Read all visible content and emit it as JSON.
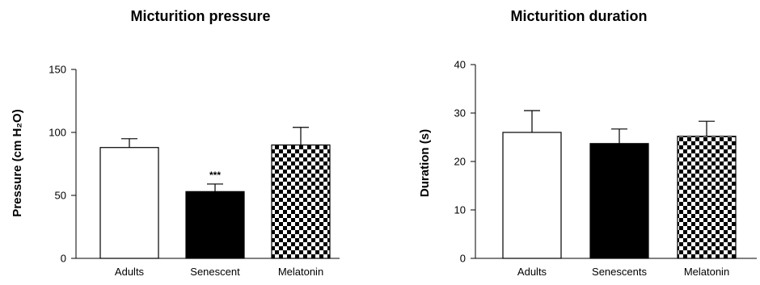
{
  "chart_data": [
    {
      "type": "bar",
      "title": "Micturition pressure",
      "ylabel": "Pressure (cm H₂O)",
      "categories": [
        "Adults",
        "Senescent",
        "Melatonin"
      ],
      "values": [
        88,
        53,
        90
      ],
      "error_upper": [
        95,
        59,
        104
      ],
      "ylim": [
        0,
        150
      ],
      "yticks": [
        "0",
        "50",
        "100",
        "150"
      ],
      "bar_fills": [
        "white",
        "black",
        "checker"
      ],
      "annotations": [
        {
          "category": "Senescent",
          "text": "***"
        }
      ],
      "grid": false
    },
    {
      "type": "bar",
      "title": "Micturition duration",
      "ylabel": "Duration (s)",
      "categories": [
        "Adults",
        "Senescents",
        "Melatonin"
      ],
      "values": [
        26,
        23.7,
        25.2
      ],
      "error_upper": [
        30.5,
        26.7,
        28.3
      ],
      "ylim": [
        0,
        40
      ],
      "yticks": [
        "0",
        "10",
        "20",
        "30",
        "40"
      ],
      "bar_fills": [
        "white",
        "black",
        "checker"
      ],
      "grid": false
    }
  ]
}
